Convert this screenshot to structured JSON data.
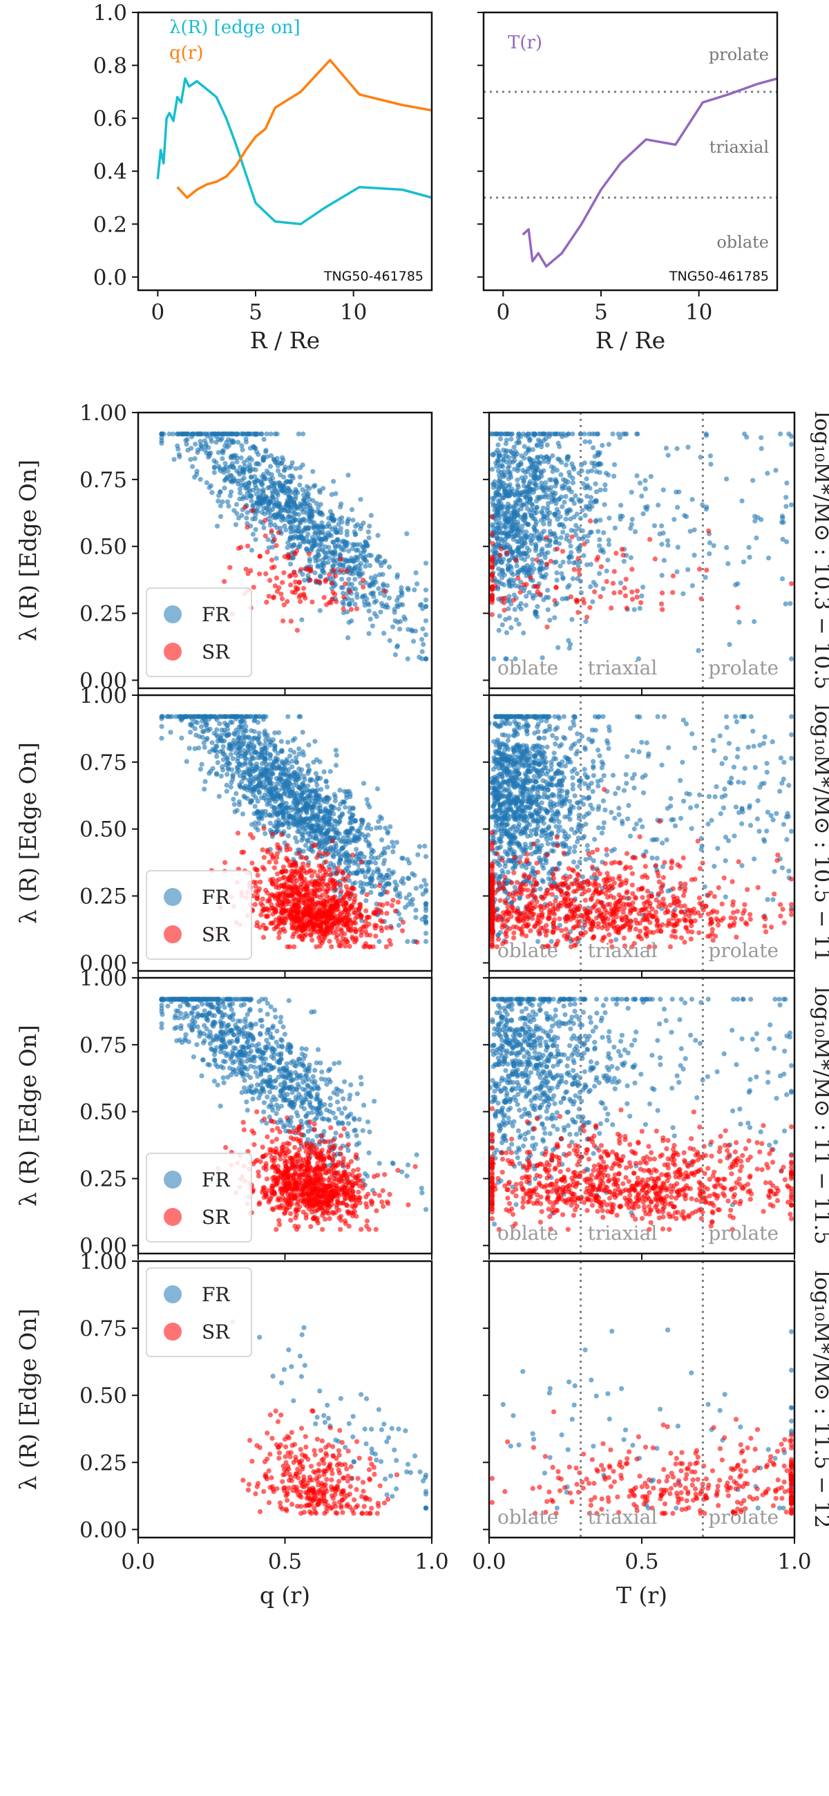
{
  "figure_name": "galaxy-kinematics-shape-figure",
  "colors": {
    "lambda_line": "#17becf",
    "q_line": "#ff7f0e",
    "T_line": "#9467bd",
    "FR": "#1f77b4",
    "SR": "#ff0000",
    "dotted": "#7f7f7f",
    "annot": "#777777"
  },
  "legend": {
    "fr_label": "FR",
    "sr_label": "SR"
  },
  "side_labels": [
    "log₁₀M*/M⊙ : 10.3 − 10.5",
    "log₁₀M*/M⊙ : 10.5 − 11",
    "log₁₀M*/M⊙ : 11 − 11.5",
    "log₁₀M*/M⊙ : 11.5 − 12"
  ],
  "chart_data": [
    {
      "type": "line",
      "panel": "top-left",
      "xlabel": "R / Re",
      "ylabel": "",
      "xlim": [
        -1,
        14
      ],
      "ylim": [
        -0.05,
        1.0
      ],
      "xticks": [
        0,
        5,
        10
      ],
      "yticks": [
        0.0,
        0.2,
        0.4,
        0.6,
        0.8,
        1.0
      ],
      "ytick_labels": [
        "0.0",
        "0.2",
        "0.4",
        "0.6",
        "0.8",
        "1.0"
      ],
      "annotation": "TNG50-461785",
      "series": [
        {
          "name": "λ(R) [edge on]",
          "color": "#17becf",
          "x": [
            0.0,
            0.15,
            0.3,
            0.45,
            0.6,
            0.8,
            1.0,
            1.2,
            1.4,
            1.6,
            2.0,
            2.5,
            3.0,
            3.5,
            4.0,
            4.5,
            5.0,
            6.0,
            7.3,
            8.5,
            10.3,
            12.5,
            14.0
          ],
          "y": [
            0.37,
            0.48,
            0.43,
            0.6,
            0.62,
            0.59,
            0.68,
            0.66,
            0.75,
            0.72,
            0.74,
            0.71,
            0.68,
            0.6,
            0.5,
            0.39,
            0.28,
            0.21,
            0.2,
            0.26,
            0.34,
            0.33,
            0.3
          ]
        },
        {
          "name": "q(r)",
          "color": "#ff7f0e",
          "x": [
            1.0,
            1.5,
            2.0,
            2.5,
            3.0,
            3.5,
            4.0,
            4.5,
            5.0,
            5.5,
            6.0,
            7.3,
            8.8,
            10.3,
            12.5,
            14.0
          ],
          "y": [
            0.34,
            0.3,
            0.33,
            0.35,
            0.36,
            0.38,
            0.42,
            0.48,
            0.53,
            0.56,
            0.64,
            0.7,
            0.82,
            0.69,
            0.65,
            0.63
          ]
        }
      ]
    },
    {
      "type": "line",
      "panel": "top-right",
      "xlabel": "R / Re",
      "ylabel": "",
      "xlim": [
        -1,
        14
      ],
      "ylim": [
        -0.05,
        1.0
      ],
      "xticks": [
        0,
        5,
        10
      ],
      "yticks": [
        0.0,
        0.2,
        0.4,
        0.6,
        0.8,
        1.0
      ],
      "annotation": "TNG50-461785",
      "hlines": [
        0.3,
        0.7
      ],
      "region_labels": [
        "prolate",
        "triaxial",
        "oblate"
      ],
      "series": [
        {
          "name": "T(r)",
          "color": "#9467bd",
          "x": [
            1.0,
            1.3,
            1.5,
            1.8,
            2.2,
            3.0,
            4.0,
            5.0,
            6.0,
            7.3,
            8.8,
            10.2,
            11.5,
            13.0,
            14.0
          ],
          "y": [
            0.16,
            0.18,
            0.06,
            0.09,
            0.04,
            0.09,
            0.2,
            0.33,
            0.43,
            0.52,
            0.5,
            0.66,
            0.69,
            0.73,
            0.75
          ]
        }
      ]
    },
    {
      "type": "scatter",
      "panel": "grid",
      "ylabel": "λ (R) [Edge On]",
      "xlabel_left": "q (r)",
      "xlabel_right": "T (r)",
      "xlim": [
        0.0,
        1.0
      ],
      "ylim": [
        -0.03,
        1.0
      ],
      "xticks": [
        0.0,
        0.5,
        1.0
      ],
      "xtick_labels": [
        "0.0",
        "0.5",
        "1.0"
      ],
      "yticks": [
        0.0,
        0.25,
        0.5,
        0.75,
        1.0
      ],
      "ytick_labels": [
        "0.00",
        "0.25",
        "0.50",
        "0.75",
        "1.00"
      ],
      "vlines": [
        0.3,
        0.7
      ],
      "region_labels": [
        "oblate",
        "triaxial",
        "prolate"
      ],
      "series": [
        "FR",
        "SR"
      ],
      "rows": [
        {
          "mass_bin": "10.3 - 10.5",
          "n_fr": 1100,
          "n_sr": 110,
          "fr_q_center": 0.52,
          "fr_lambda_center": 0.62,
          "sr_lambda_center": 0.35,
          "fr_T_center": 0.13,
          "sr_T_center": 0.2
        },
        {
          "mass_bin": "10.5 - 11",
          "n_fr": 2300,
          "n_sr": 950,
          "fr_q_center": 0.45,
          "fr_lambda_center": 0.62,
          "sr_lambda_center": 0.2,
          "fr_T_center": 0.12,
          "sr_T_center": 0.3
        },
        {
          "mass_bin": "11 - 11.5",
          "n_fr": 900,
          "n_sr": 850,
          "fr_q_center": 0.38,
          "fr_lambda_center": 0.7,
          "sr_lambda_center": 0.22,
          "fr_T_center": 0.16,
          "sr_T_center": 0.45
        },
        {
          "mass_bin": "11.5 - 12",
          "n_fr": 70,
          "n_sr": 320,
          "fr_q_center": 0.55,
          "fr_lambda_center": 0.35,
          "sr_lambda_center": 0.16,
          "fr_T_center": 0.5,
          "sr_T_center": 0.7
        }
      ]
    }
  ]
}
